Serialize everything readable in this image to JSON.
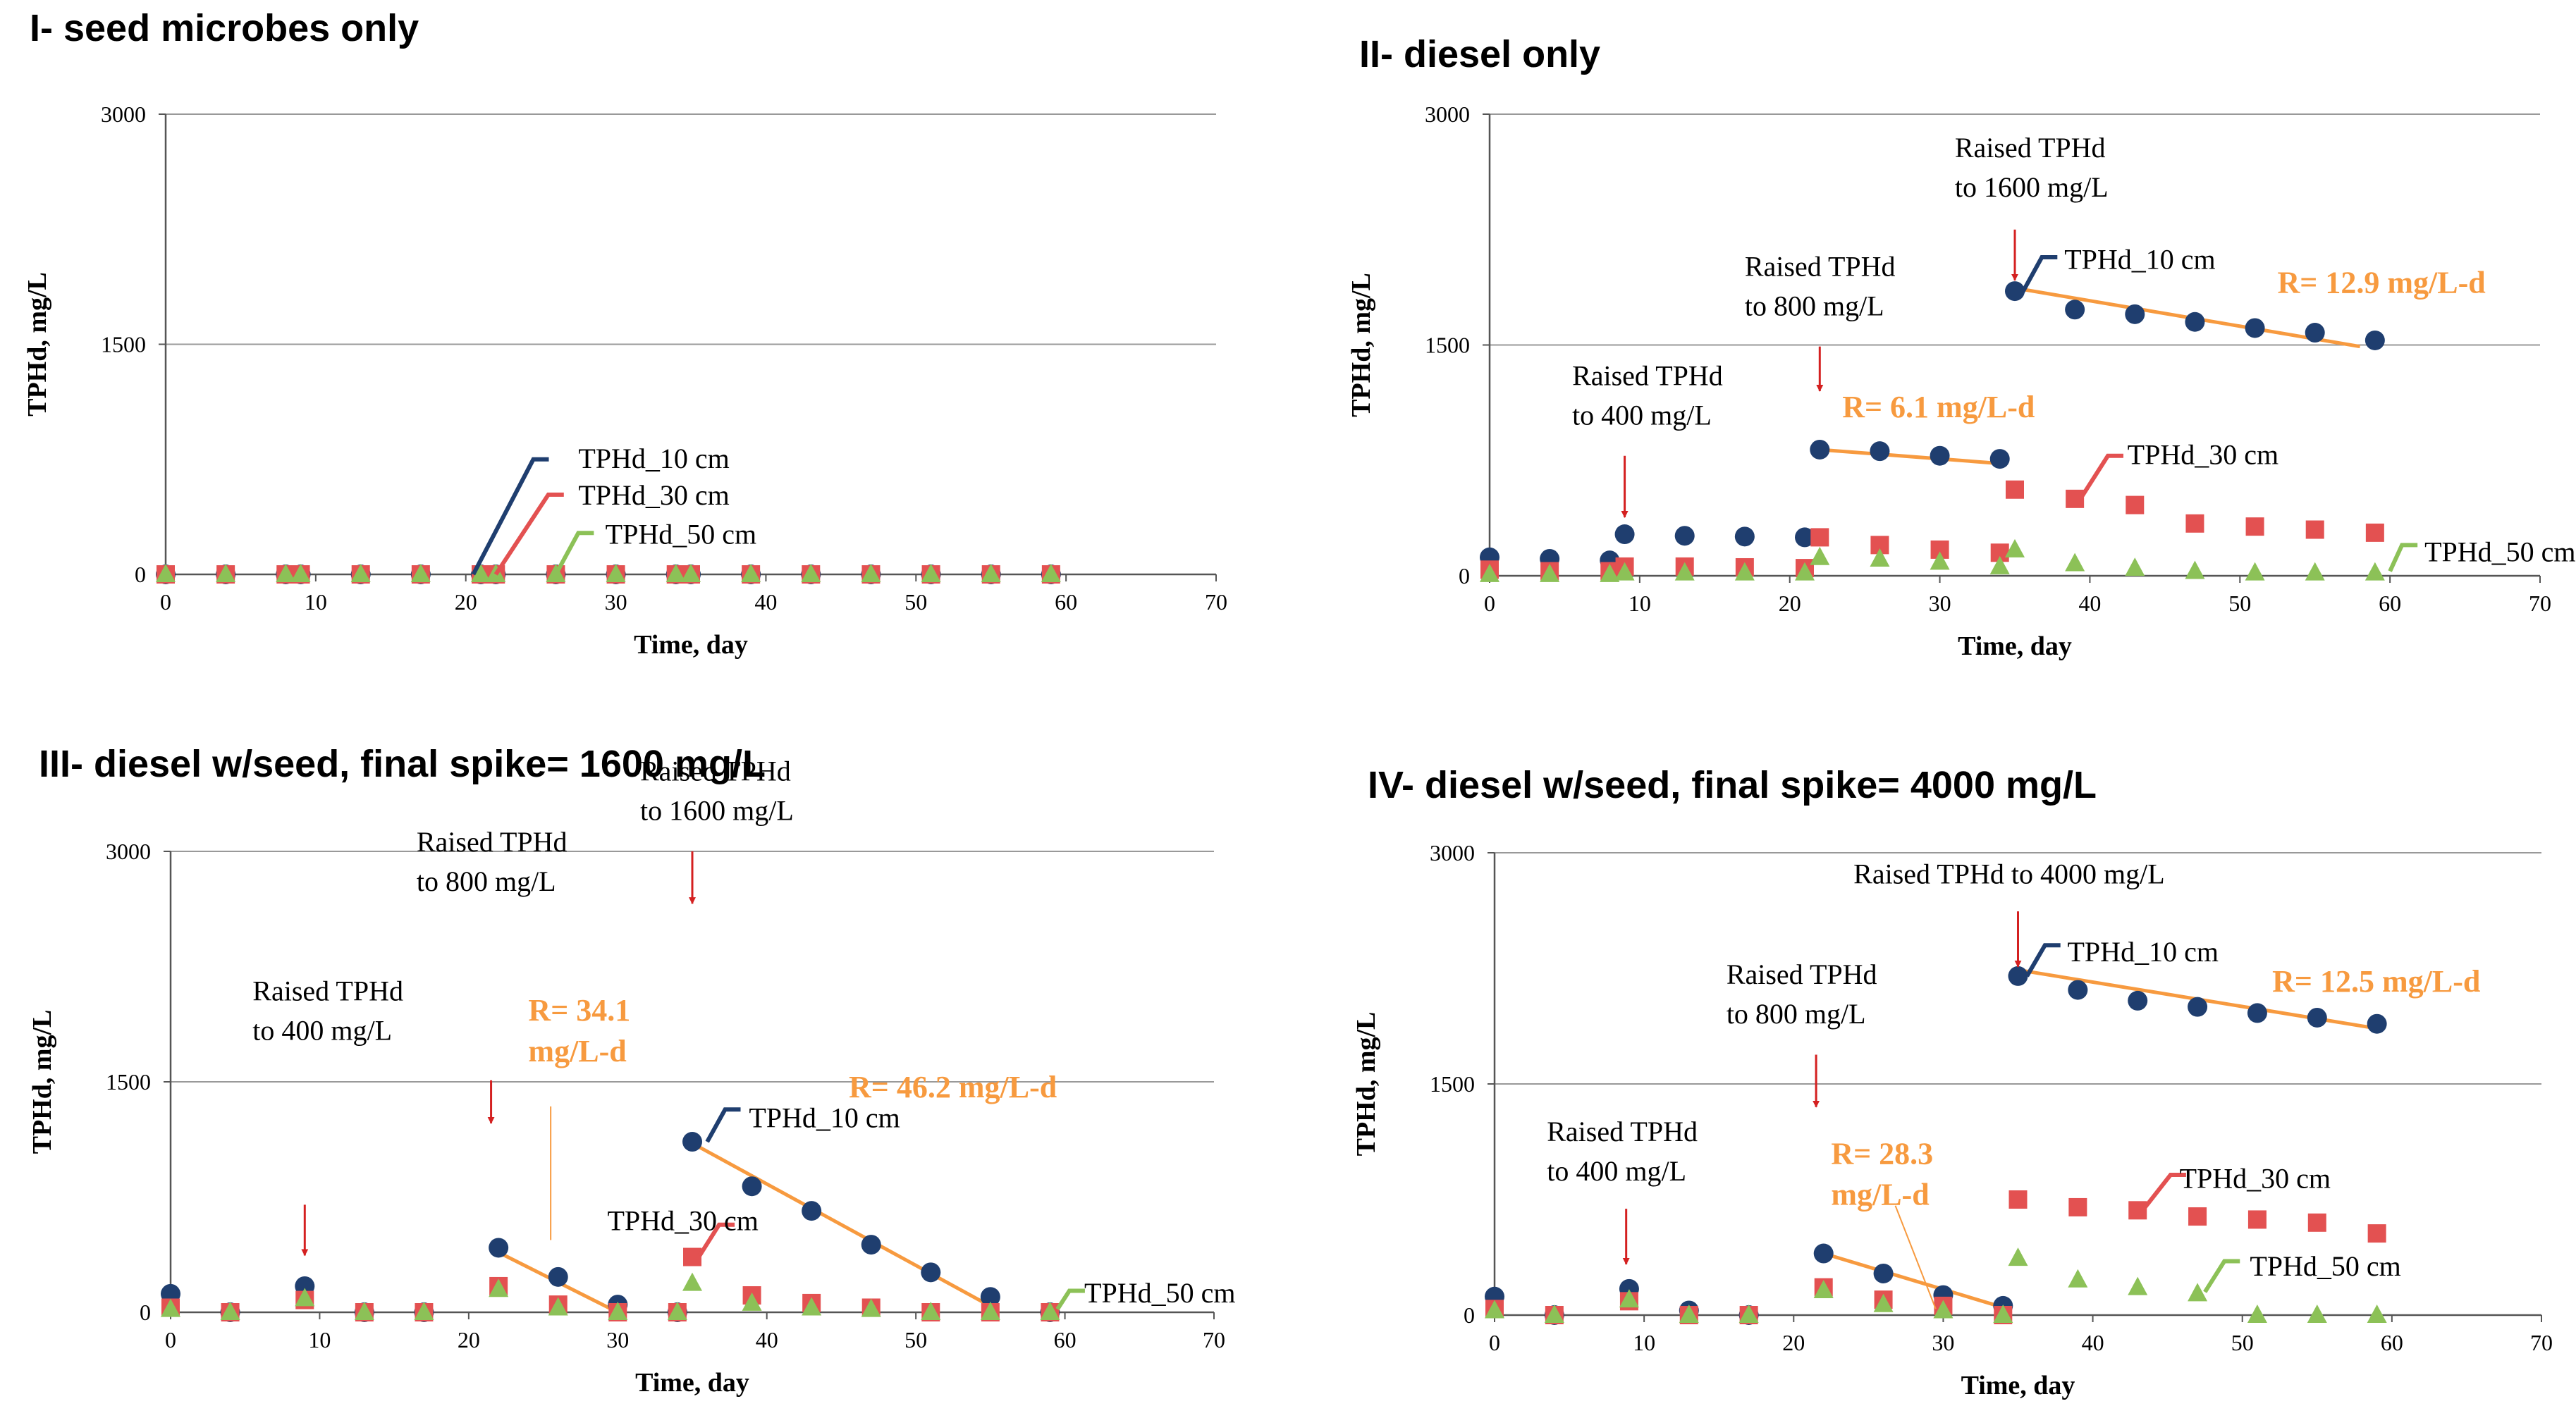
{
  "colors": {
    "s10": "#1f3e6f",
    "s30": "#e35151",
    "s50": "#8cc157",
    "fit": "#f79a3f",
    "arrow": "#d42020",
    "grid": "#999999"
  },
  "chart_data": [
    {
      "type": "scatter",
      "title": "I- seed microbes only",
      "xlabel": "Time, day",
      "ylabel": "TPHd, mg/L",
      "xlim": [
        0,
        70
      ],
      "ylim": [
        0,
        3000
      ],
      "xticks": [
        "0",
        "10",
        "20",
        "30",
        "40",
        "50",
        "60",
        "70"
      ],
      "yticks": [
        "0",
        "1500",
        "3000"
      ],
      "series": [
        {
          "name": "TPHd_10 cm",
          "marker": "circle",
          "color": "s10",
          "x": [
            0,
            4,
            8,
            9,
            13,
            17,
            21,
            22,
            26,
            30,
            34,
            35,
            39,
            43,
            47,
            51,
            55,
            59
          ],
          "y": [
            0,
            0,
            0,
            0,
            0,
            0,
            0,
            0,
            0,
            0,
            0,
            0,
            0,
            0,
            0,
            0,
            0,
            0
          ]
        },
        {
          "name": "TPHd_30 cm",
          "marker": "square",
          "color": "s30",
          "x": [
            0,
            4,
            8,
            9,
            13,
            17,
            21,
            22,
            26,
            30,
            34,
            35,
            39,
            43,
            47,
            51,
            55,
            59
          ],
          "y": [
            0,
            0,
            0,
            0,
            0,
            0,
            0,
            0,
            0,
            0,
            0,
            0,
            0,
            0,
            0,
            0,
            0,
            0
          ]
        },
        {
          "name": "TPHd_50 cm",
          "marker": "triangle",
          "color": "s50",
          "x": [
            0,
            4,
            8,
            9,
            13,
            17,
            21,
            22,
            26,
            30,
            34,
            35,
            39,
            43,
            47,
            51,
            55,
            59
          ],
          "y": [
            0,
            0,
            0,
            0,
            0,
            0,
            0,
            0,
            0,
            0,
            0,
            0,
            0,
            0,
            0,
            0,
            0,
            0
          ]
        }
      ],
      "legend_callouts": [
        {
          "series": "TPHd_10 cm",
          "text": "TPHd_10 cm",
          "anchor": [
            20.5,
            0
          ],
          "bend": [
            24.5,
            750
          ],
          "label_at": [
            27.5,
            750
          ]
        },
        {
          "series": "TPHd_30 cm",
          "text": "TPHd_30 cm",
          "anchor": [
            22,
            0
          ],
          "bend": [
            25.5,
            520
          ],
          "label_at": [
            27.5,
            510
          ]
        },
        {
          "series": "TPHd_50 cm",
          "text": "TPHd_50 cm",
          "anchor": [
            26,
            0
          ],
          "bend": [
            27.5,
            270
          ],
          "label_at": [
            29.3,
            255
          ]
        }
      ],
      "annotations": [],
      "fits": []
    },
    {
      "type": "scatter",
      "title": "II- diesel only",
      "xlabel": "Time, day",
      "ylabel": "TPHd, mg/L",
      "xlim": [
        0,
        70
      ],
      "ylim": [
        0,
        3000
      ],
      "xticks": [
        "0",
        "10",
        "20",
        "30",
        "40",
        "50",
        "60",
        "70"
      ],
      "yticks": [
        "0",
        "1500",
        "3000"
      ],
      "series": [
        {
          "name": "TPHd_10 cm",
          "marker": "circle",
          "color": "s10",
          "x": [
            0,
            4,
            8,
            9,
            13,
            17,
            21,
            22,
            26,
            30,
            34,
            35,
            39,
            43,
            47,
            51,
            55,
            59
          ],
          "y": [
            120,
            110,
            100,
            270,
            260,
            255,
            250,
            820,
            810,
            780,
            760,
            1850,
            1730,
            1700,
            1650,
            1610,
            1580,
            1530
          ]
        },
        {
          "name": "TPHd_30 cm",
          "marker": "square",
          "color": "s30",
          "x": [
            0,
            4,
            8,
            9,
            13,
            17,
            21,
            22,
            26,
            30,
            34,
            35,
            39,
            43,
            47,
            51,
            55,
            59
          ],
          "y": [
            40,
            30,
            30,
            60,
            60,
            55,
            50,
            250,
            200,
            170,
            150,
            560,
            500,
            460,
            340,
            320,
            300,
            280
          ]
        },
        {
          "name": "TPHd_50 cm",
          "marker": "triangle",
          "color": "s50",
          "x": [
            0,
            4,
            8,
            9,
            13,
            17,
            21,
            22,
            26,
            30,
            34,
            35,
            39,
            43,
            47,
            51,
            55,
            59
          ],
          "y": [
            10,
            10,
            10,
            20,
            20,
            20,
            20,
            120,
            110,
            90,
            60,
            170,
            80,
            50,
            30,
            20,
            20,
            20
          ]
        }
      ],
      "legend_callouts": [
        {
          "series": "TPHd_10 cm",
          "text": "TPHd_10 cm",
          "anchor": [
            35.5,
            1840
          ],
          "bend": [
            36.8,
            2070
          ],
          "label_at": [
            38.3,
            2050
          ]
        },
        {
          "series": "TPHd_30 cm",
          "text": "TPHd_30 cm",
          "anchor": [
            39.5,
            520
          ],
          "bend": [
            41.2,
            780
          ],
          "label_at": [
            42.5,
            780
          ]
        },
        {
          "series": "TPHd_50 cm",
          "text": "TPHd_50 cm",
          "anchor": [
            60,
            30
          ],
          "bend": [
            60.8,
            200
          ],
          "label_at": [
            62.3,
            150
          ]
        }
      ],
      "annotations": [
        {
          "lines": [
            "Raised TPHd",
            "to 400 mg/L"
          ],
          "text_at": [
            5.5,
            1240
          ],
          "arrow_x": 9,
          "arrow_from": 780,
          "arrow_to": 380
        },
        {
          "lines": [
            "Raised TPHd",
            "to 800 mg/L"
          ],
          "text_at": [
            17,
            1950
          ],
          "arrow_x": 22,
          "arrow_from": 1490,
          "arrow_to": 1200
        },
        {
          "lines": [
            "Raised TPHd",
            "to 1600 mg/L"
          ],
          "text_at": [
            31,
            2720
          ],
          "arrow_x": 35,
          "arrow_from": 2250,
          "arrow_to": 1920
        }
      ],
      "fits": [
        {
          "label": "R= 6.1 mg/L-d",
          "from": [
            22,
            820
          ],
          "to": [
            34,
            730
          ],
          "label_at": [
            23.5,
            1030
          ]
        },
        {
          "label": "R= 12.9 mg/L-d",
          "from": [
            35,
            1870
          ],
          "to": [
            58,
            1490
          ],
          "label_at": [
            52.5,
            1840
          ]
        }
      ]
    },
    {
      "type": "scatter",
      "title": "III- diesel w/seed, final spike= 1600 mg/L",
      "xlabel": "Time, day",
      "ylabel": "TPHd, mg/L",
      "xlim": [
        0,
        70
      ],
      "ylim": [
        0,
        3000
      ],
      "xticks": [
        "0",
        "10",
        "20",
        "30",
        "40",
        "50",
        "60",
        "70"
      ],
      "yticks": [
        "0",
        "1500",
        "3000"
      ],
      "series": [
        {
          "name": "TPHd_10 cm",
          "marker": "circle",
          "color": "s10",
          "x": [
            0,
            4,
            9,
            13,
            17,
            22,
            26,
            30,
            34,
            35,
            39,
            43,
            47,
            51,
            55,
            59
          ],
          "y": [
            120,
            0,
            170,
            0,
            0,
            420,
            230,
            50,
            0,
            1110,
            820,
            660,
            440,
            260,
            100,
            0
          ]
        },
        {
          "name": "TPHd_30 cm",
          "marker": "square",
          "color": "s30",
          "x": [
            0,
            4,
            9,
            13,
            17,
            22,
            26,
            30,
            34,
            35,
            39,
            43,
            47,
            51,
            55,
            59
          ],
          "y": [
            30,
            0,
            80,
            0,
            0,
            170,
            50,
            0,
            0,
            360,
            110,
            60,
            30,
            0,
            0,
            0
          ]
        },
        {
          "name": "TPHd_50 cm",
          "marker": "triangle",
          "color": "s50",
          "x": [
            0,
            4,
            9,
            13,
            17,
            22,
            26,
            30,
            34,
            35,
            39,
            43,
            47,
            51,
            55,
            59
          ],
          "y": [
            20,
            0,
            90,
            0,
            0,
            150,
            30,
            0,
            0,
            190,
            60,
            30,
            20,
            0,
            0,
            0
          ]
        }
      ],
      "legend_callouts": [
        {
          "series": "TPHd_10 cm",
          "text": "TPHd_10 cm",
          "anchor": [
            36,
            1110
          ],
          "bend": [
            37.2,
            1320
          ],
          "label_at": [
            38.8,
            1260
          ]
        },
        {
          "series": "TPHd_30 cm",
          "text": "TPHd_30 cm",
          "anchor": [
            35.5,
            370
          ],
          "bend": [
            36.8,
            570
          ],
          "label_at": [
            29.3,
            590
          ]
        },
        {
          "series": "TPHd_50 cm",
          "text": "TPHd_50 cm",
          "anchor": [
            59.5,
            20
          ],
          "bend": [
            60.3,
            140
          ],
          "label_at": [
            61.3,
            120
          ]
        }
      ],
      "annotations": [
        {
          "lines": [
            "Raised TPHd",
            "to 400 mg/L"
          ],
          "text_at": [
            5.5,
            2030
          ],
          "arrow_x": 9,
          "arrow_from": 700,
          "arrow_to": 370
        },
        {
          "lines": [
            "Raised TPHd",
            "to 800 mg/L"
          ],
          "text_at": [
            16.5,
            3000
          ],
          "arrow_x": 21.5,
          "arrow_from": 1510,
          "arrow_to": 1230
        },
        {
          "lines": [
            "Raised TPHd",
            "to 1600 mg/L"
          ],
          "text_at": [
            31.5,
            3460
          ],
          "arrow_x": 35,
          "arrow_from": 3000,
          "arrow_to": 2660
        }
      ],
      "fits": [
        {
          "label": "R= 34.1",
          "label2": "mg/L-d",
          "from": [
            22,
            390
          ],
          "to": [
            30,
            0
          ],
          "label_at": [
            24,
            1900
          ],
          "leader_from": [
            25.5,
            1340
          ],
          "leader_to": [
            25.5,
            470
          ]
        },
        {
          "label": "R= 46.2 mg/L-d",
          "from": [
            35,
            1100
          ],
          "to": [
            55,
            40
          ],
          "label_at": [
            45.5,
            1400
          ]
        }
      ]
    },
    {
      "type": "scatter",
      "title": "IV- diesel w/seed, final spike= 4000 mg/L",
      "xlabel": "Time, day",
      "ylabel": "TPHd, mg/L",
      "xlim": [
        0,
        70
      ],
      "ylim": [
        0,
        3000
      ],
      "xticks": [
        "0",
        "10",
        "20",
        "30",
        "40",
        "50",
        "60",
        "70"
      ],
      "yticks": [
        "0",
        "1500",
        "3000"
      ],
      "series": [
        {
          "name": "TPHd_10 cm",
          "marker": "circle",
          "color": "s10",
          "x": [
            0,
            4,
            9,
            13,
            17,
            22,
            26,
            30,
            34,
            35,
            39,
            43,
            47,
            51,
            55,
            59
          ],
          "y": [
            120,
            0,
            170,
            30,
            0,
            400,
            270,
            130,
            60,
            2200,
            2110,
            2040,
            2000,
            1960,
            1930,
            1890
          ]
        },
        {
          "name": "TPHd_30 cm",
          "marker": "square",
          "color": "s30",
          "x": [
            0,
            4,
            9,
            13,
            17,
            22,
            26,
            30,
            34,
            35,
            39,
            43,
            47,
            51,
            55,
            59
          ],
          "y": [
            40,
            0,
            90,
            0,
            0,
            180,
            100,
            60,
            0,
            750,
            700,
            680,
            640,
            620,
            600,
            530
          ]
        },
        {
          "name": "TPHd_50 cm",
          "marker": "triangle",
          "color": "s50",
          "x": [
            0,
            4,
            9,
            13,
            17,
            22,
            26,
            30,
            34,
            35,
            39,
            43,
            47,
            51,
            55,
            59
          ],
          "y": [
            30,
            0,
            100,
            0,
            0,
            160,
            70,
            30,
            0,
            370,
            230,
            180,
            140,
            0,
            0,
            0
          ]
        }
      ],
      "legend_callouts": [
        {
          "series": "TPHd_10 cm",
          "text": "TPHd_10 cm",
          "anchor": [
            35.6,
            2200
          ],
          "bend": [
            36.8,
            2400
          ],
          "label_at": [
            38.3,
            2350
          ]
        },
        {
          "series": "TPHd_30 cm",
          "text": "TPHd_30 cm",
          "anchor": [
            43.5,
            700
          ],
          "bend": [
            45.2,
            910
          ],
          "label_at": [
            45.8,
            880
          ]
        },
        {
          "series": "TPHd_50 cm",
          "text": "TPHd_50 cm",
          "anchor": [
            47.5,
            150
          ],
          "bend": [
            48.8,
            350
          ],
          "label_at": [
            50.5,
            310
          ]
        }
      ],
      "annotations": [
        {
          "lines": [
            "Raised TPHd to 4000 mg/L"
          ],
          "text_at": [
            24,
            2800
          ],
          "arrow_x": 35,
          "arrow_from": 2620,
          "arrow_to": 2260
        },
        {
          "lines": [
            "Raised TPHd",
            "to 800 mg/L"
          ],
          "text_at": [
            15.5,
            2150
          ],
          "arrow_x": 21.5,
          "arrow_from": 1690,
          "arrow_to": 1350
        },
        {
          "lines": [
            "Raised TPHd",
            "to 400 mg/L"
          ],
          "text_at": [
            3.5,
            1130
          ],
          "arrow_x": 8.8,
          "arrow_from": 690,
          "arrow_to": 330
        }
      ],
      "fits": [
        {
          "label": "R= 28.3",
          "label2": "mg/L-d",
          "from": [
            22,
            400
          ],
          "to": [
            34,
            50
          ],
          "label_at": [
            22.5,
            980
          ],
          "leader_from": [
            26.8,
            710
          ],
          "leader_to": [
            29.5,
            40
          ]
        },
        {
          "label": "R= 12.5 mg/L-d",
          "from": [
            35,
            2240
          ],
          "to": [
            59,
            1860
          ],
          "label_at": [
            52,
            2100
          ]
        }
      ]
    }
  ]
}
